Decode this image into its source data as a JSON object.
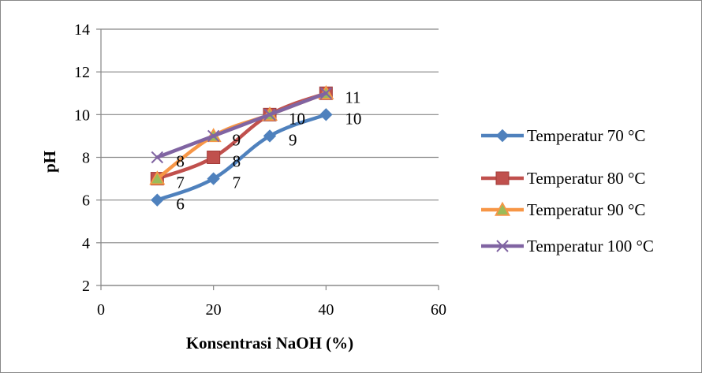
{
  "chart_data": {
    "type": "line",
    "title": "",
    "xlabel": "Konsentrasi NaOH (%)",
    "ylabel": "pH",
    "xlim": [
      0,
      60
    ],
    "ylim": [
      2,
      14
    ],
    "xticks": [
      0,
      20,
      40,
      60
    ],
    "yticks": [
      2,
      4,
      6,
      8,
      10,
      12,
      14
    ],
    "grid": "horizontal",
    "legend_position": "right",
    "series": [
      {
        "name": "Temperatur 70 °C",
        "color": "#4f81bd",
        "marker": "diamond",
        "x": [
          10,
          20,
          30,
          40
        ],
        "y": [
          6,
          7,
          9,
          10
        ],
        "labels": [
          "6",
          "7",
          "9",
          "10"
        ]
      },
      {
        "name": "Temperatur 80 °C",
        "color": "#c0504d",
        "marker": "square",
        "x": [
          10,
          20,
          30,
          40
        ],
        "y": [
          7,
          8,
          10,
          11
        ],
        "labels": [
          "7",
          "8",
          "",
          ""
        ]
      },
      {
        "name": "Temperatur 90 °C",
        "color": "#f79646",
        "marker": "triangle",
        "x": [
          10,
          20,
          30,
          40
        ],
        "y": [
          7,
          9,
          10,
          11
        ],
        "labels": [
          "",
          "9",
          "10",
          "11"
        ]
      },
      {
        "name": "Temperatur 100 °C",
        "color": "#8064a2",
        "marker": "x",
        "x": [
          10,
          20,
          30,
          40
        ],
        "y": [
          8,
          9,
          10,
          11
        ],
        "labels": [
          "8",
          "",
          "",
          ""
        ]
      }
    ]
  }
}
